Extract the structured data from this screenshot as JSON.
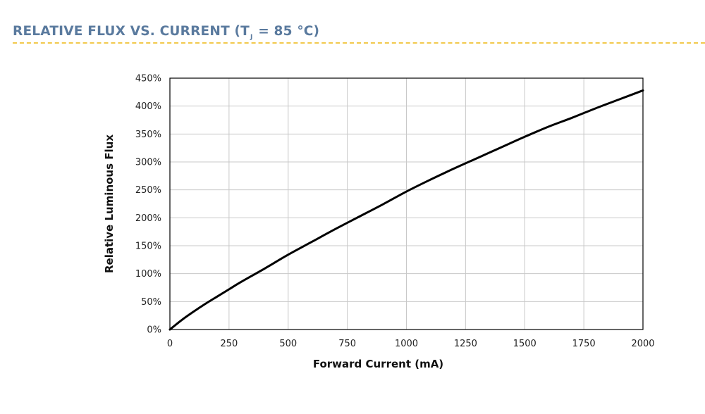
{
  "header": {
    "title_pre": "RELATIVE FLUX VS. CURRENT (T",
    "title_sub": "J",
    "title_post": " = 85 °C)"
  },
  "colors": {
    "heading": "#5a7a9e",
    "divider": "#f2c94c",
    "line": "#000000",
    "grid": "#c8c8c8"
  },
  "chart_data": {
    "type": "line",
    "xlabel": "Forward Current (mA)",
    "ylabel": "Relative Luminous Flux",
    "xlim": [
      0,
      2000
    ],
    "ylim": [
      0,
      450
    ],
    "xticks": [
      "0",
      "250",
      "500",
      "750",
      "1000",
      "1250",
      "1500",
      "1750",
      "2000"
    ],
    "yticks": [
      "0%",
      "50%",
      "100%",
      "150%",
      "200%",
      "250%",
      "300%",
      "350%",
      "400%",
      "450%"
    ],
    "grid": true,
    "series": [
      {
        "x": [
          0,
          50,
          100,
          150,
          200,
          250,
          300,
          400,
          500,
          600,
          700,
          800,
          900,
          1000,
          1100,
          1200,
          1300,
          1400,
          1500,
          1600,
          1700,
          1800,
          1900,
          2000
        ],
        "y": [
          0,
          17,
          32,
          46,
          59,
          72,
          85,
          109,
          134,
          157,
          180,
          202,
          224,
          247,
          268,
          288,
          307,
          326,
          345,
          363,
          379,
          396,
          412,
          428
        ]
      }
    ]
  }
}
